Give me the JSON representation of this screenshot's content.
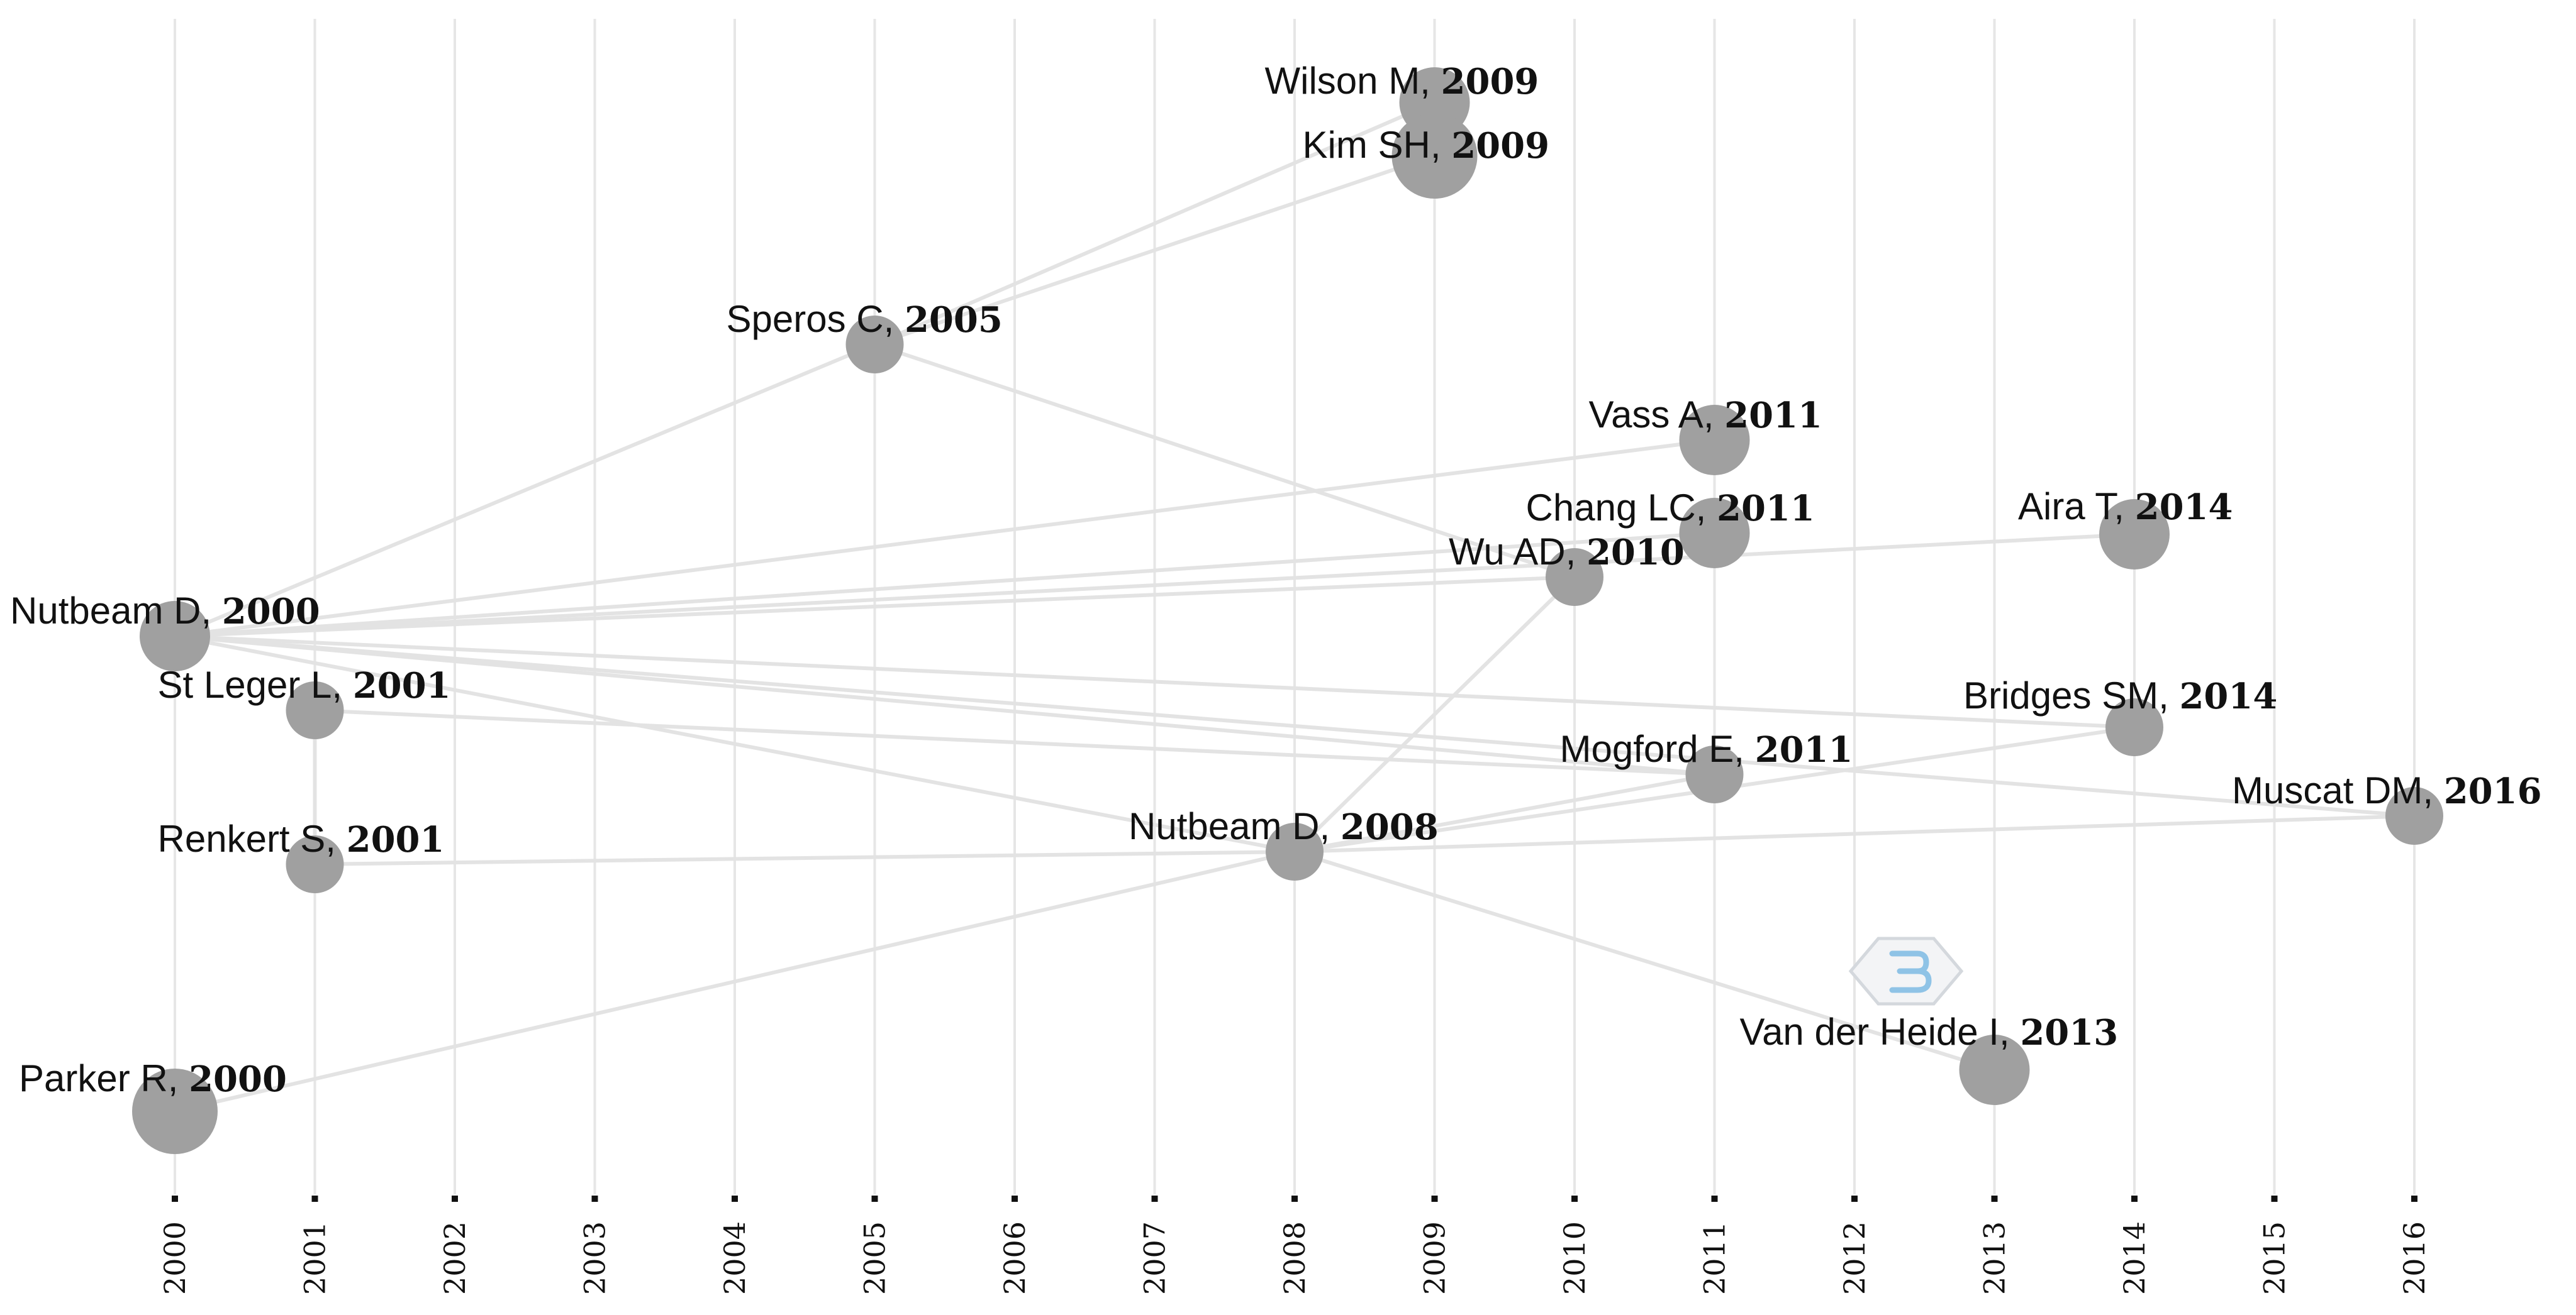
{
  "diagram": {
    "type": "historiographic citation network",
    "years": [
      "2000",
      "2001",
      "2002",
      "2003",
      "2004",
      "2005",
      "2006",
      "2007",
      "2008",
      "2009",
      "2010",
      "2011",
      "2012",
      "2013",
      "2014",
      "2015",
      "2016"
    ],
    "nodes": [
      {
        "id": "nutbeam2000",
        "name": "Nutbeam D,",
        "year": "2000",
        "size": "medium"
      },
      {
        "id": "parker2000",
        "name": "Parker R,",
        "year": "2000",
        "size": "large"
      },
      {
        "id": "stleger2001",
        "name": "St Leger L,",
        "year": "2001",
        "size": "small"
      },
      {
        "id": "renkert2001",
        "name": "Renkert S,",
        "year": "2001",
        "size": "small"
      },
      {
        "id": "speros2005",
        "name": "Speros C,",
        "year": "2005",
        "size": "small"
      },
      {
        "id": "nutbeam2008",
        "name": "Nutbeam D,",
        "year": "2008",
        "size": "small"
      },
      {
        "id": "wilson2009",
        "name": "Wilson M,",
        "year": "2009",
        "size": "medium"
      },
      {
        "id": "kim2009",
        "name": "Kim SH,",
        "year": "2009",
        "size": "large"
      },
      {
        "id": "wu2010",
        "name": "Wu AD,",
        "year": "2010",
        "size": "small"
      },
      {
        "id": "vass2011",
        "name": "Vass A,",
        "year": "2011",
        "size": "medium"
      },
      {
        "id": "chang2011",
        "name": "Chang LC,",
        "year": "2011",
        "size": "medium"
      },
      {
        "id": "mogford2011",
        "name": "Mogford E,",
        "year": "2011",
        "size": "small"
      },
      {
        "id": "vanderheide2013",
        "name": "Van der Heide I,",
        "year": "2013",
        "size": "medium"
      },
      {
        "id": "aira2014",
        "name": "Aira T,",
        "year": "2014",
        "size": "medium"
      },
      {
        "id": "bridges2014",
        "name": "Bridges SM,",
        "year": "2014",
        "size": "small"
      },
      {
        "id": "muscat2016",
        "name": "Muscat  DM,",
        "year": "2016",
        "size": "small"
      }
    ],
    "edges": [
      [
        "nutbeam2000",
        "speros2005"
      ],
      [
        "nutbeam2000",
        "vass2011"
      ],
      [
        "nutbeam2000",
        "chang2011"
      ],
      [
        "nutbeam2000",
        "aira2014"
      ],
      [
        "nutbeam2000",
        "wu2010"
      ],
      [
        "nutbeam2000",
        "bridges2014"
      ],
      [
        "nutbeam2000",
        "mogford2011"
      ],
      [
        "nutbeam2000",
        "nutbeam2008"
      ],
      [
        "nutbeam2000",
        "muscat2016"
      ],
      [
        "speros2005",
        "wilson2009"
      ],
      [
        "speros2005",
        "kim2009"
      ],
      [
        "speros2005",
        "wu2010"
      ],
      [
        "stleger2001",
        "mogford2011"
      ],
      [
        "stleger2001",
        "renkert2001"
      ],
      [
        "renkert2001",
        "nutbeam2008"
      ],
      [
        "parker2000",
        "nutbeam2008"
      ],
      [
        "nutbeam2008",
        "wu2010"
      ],
      [
        "nutbeam2008",
        "mogford2011"
      ],
      [
        "nutbeam2008",
        "bridges2014"
      ],
      [
        "nutbeam2008",
        "vanderheide2013"
      ],
      [
        "nutbeam2008",
        "muscat2016"
      ]
    ]
  }
}
